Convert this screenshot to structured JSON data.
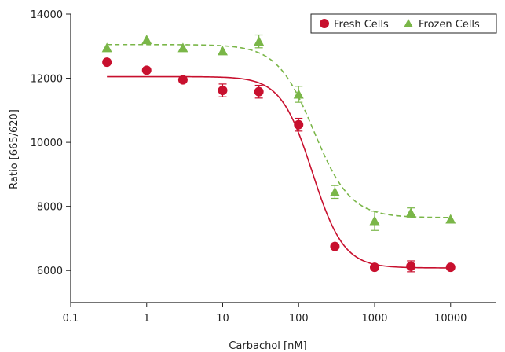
{
  "chart_data": {
    "type": "scatter",
    "title": "",
    "xlabel": "Carbachol [nM]",
    "ylabel": "Ratio [665/620]",
    "x_scale": "log",
    "xlim": [
      0.1,
      40000
    ],
    "ylim": [
      5000,
      14000
    ],
    "x_ticks": [
      0.1,
      1,
      10,
      100,
      1000,
      10000
    ],
    "x_tick_labels": [
      "0.1",
      "1",
      "10",
      "100",
      "1000",
      "10000"
    ],
    "y_ticks": [
      6000,
      8000,
      10000,
      12000,
      14000
    ],
    "y_tick_labels": [
      "6000",
      "8000",
      "10000",
      "12000",
      "14000"
    ],
    "grid": false,
    "legend_position": "top-right",
    "series": [
      {
        "name": "Fresh Cells",
        "color": "#c8102e",
        "marker": "circle",
        "fit_line": "solid",
        "x": [
          0.3,
          1,
          3,
          10,
          30,
          100,
          300,
          1000,
          3000,
          10000
        ],
        "y": [
          12500,
          12250,
          11950,
          11620,
          11580,
          10550,
          6750,
          6100,
          6130,
          6100
        ],
        "error": [
          0,
          0,
          0,
          200,
          200,
          200,
          0,
          0,
          170,
          0
        ],
        "fit": {
          "top": 12050,
          "bottom": 6080,
          "log_ic50": 2.18,
          "hill": 2.1
        }
      },
      {
        "name": "Frozen Cells",
        "color": "#7ab648",
        "marker": "triangle",
        "fit_line": "dashed",
        "x": [
          0.3,
          1,
          3,
          10,
          30,
          100,
          300,
          1000,
          3000,
          10000
        ],
        "y": [
          12950,
          13200,
          12950,
          12850,
          13150,
          11500,
          8450,
          7550,
          7800,
          7600
        ],
        "error": [
          0,
          0,
          0,
          0,
          200,
          250,
          200,
          300,
          150,
          0
        ],
        "fit": {
          "top": 13050,
          "bottom": 7650,
          "log_ic50": 2.2,
          "hill": 1.8
        }
      }
    ]
  }
}
